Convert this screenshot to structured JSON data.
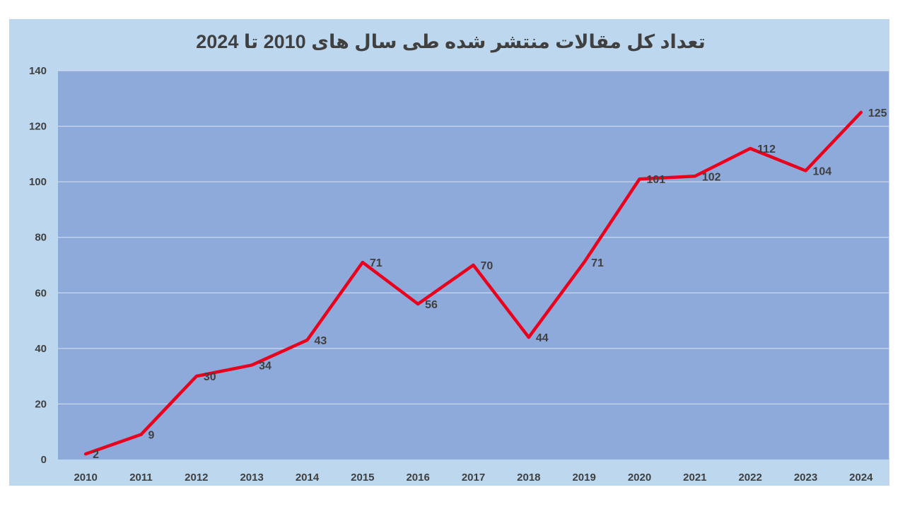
{
  "chart_data": {
    "type": "line",
    "title": "تعداد کل مقالات منتشر شده طی سال های 2010 تا 2024",
    "xlabel": "",
    "ylabel": "",
    "categories": [
      "2010",
      "2011",
      "2012",
      "2013",
      "2014",
      "2015",
      "2016",
      "2017",
      "2018",
      "2019",
      "2020",
      "2021",
      "2022",
      "2023",
      "2024"
    ],
    "series": [
      {
        "values": [
          2,
          9,
          30,
          34,
          43,
          71,
          56,
          70,
          44,
          71,
          101,
          102,
          112,
          104,
          125
        ]
      }
    ],
    "ylim": [
      0,
      140
    ],
    "yticks": [
      0,
      20,
      40,
      60,
      80,
      100,
      120,
      140
    ],
    "grid": true,
    "legend": "none",
    "colors": {
      "plot_background": "#8eaadb",
      "frame_background": "#bdd7ee",
      "line": "#e8001c",
      "gridline": "#d9e2f3",
      "text": "#404040"
    }
  }
}
